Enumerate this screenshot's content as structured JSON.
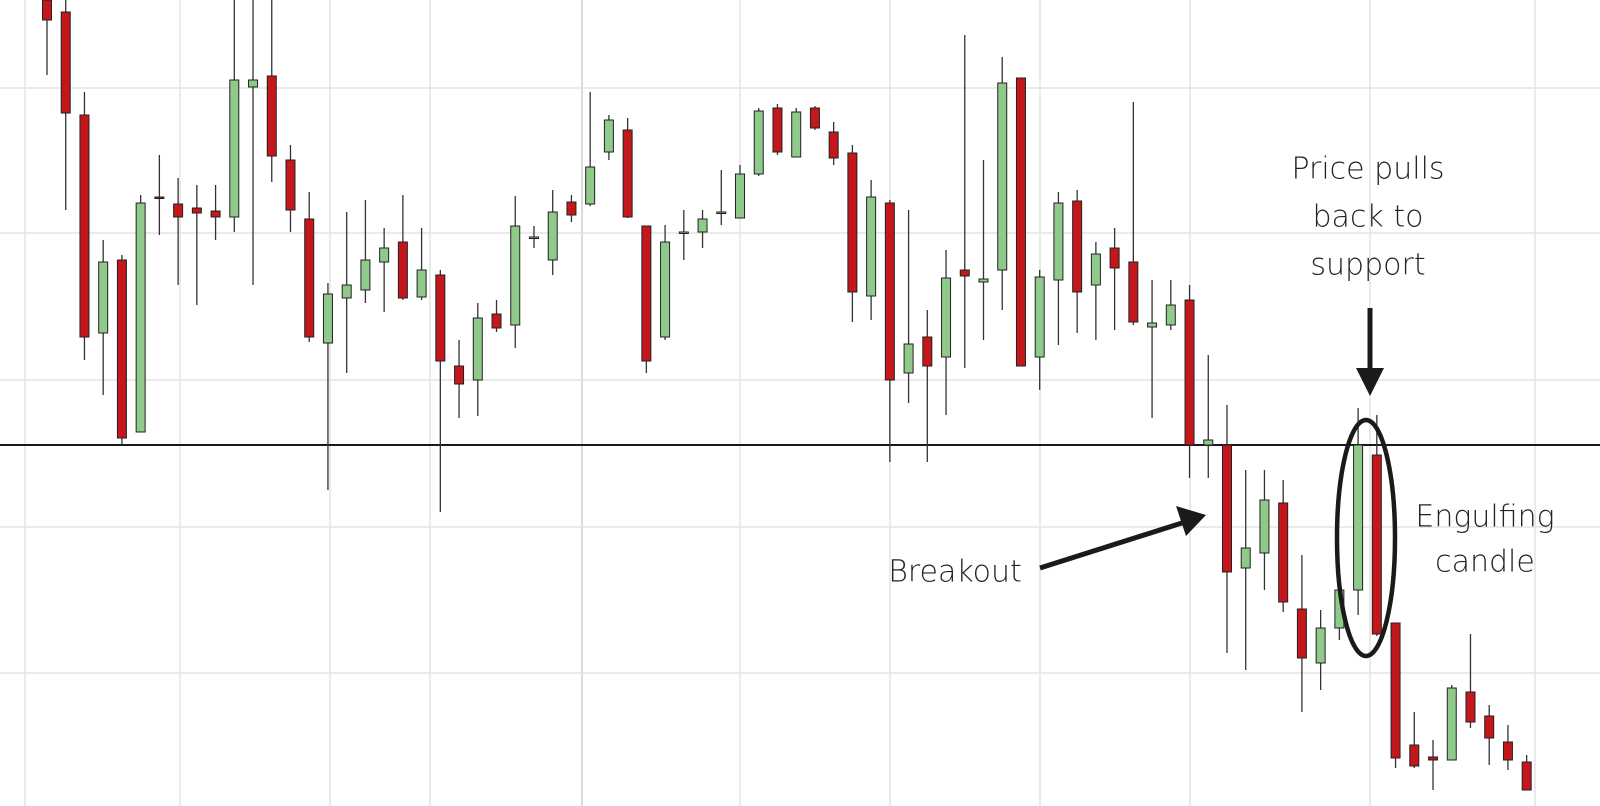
{
  "chart_data": {
    "type": "candlestick",
    "open": [
      806,
      794,
      691,
      473,
      546,
      374,
      609,
      602,
      598,
      595,
      589,
      719,
      730,
      646,
      587,
      463,
      508,
      516,
      544,
      564,
      509,
      531,
      440,
      426,
      492,
      481,
      568,
      546,
      604,
      602,
      654,
      676,
      580,
      469,
      573,
      574,
      593,
      588,
      632,
      698,
      649,
      698,
      674,
      653,
      510,
      603,
      433,
      469,
      449,
      536,
      524,
      536,
      728,
      449,
      526,
      605,
      521,
      558,
      544,
      479,
      481,
      506,
      361,
      361,
      238,
      253,
      303,
      197,
      143,
      178,
      216,
      351,
      183,
      61,
      49,
      46,
      114,
      90,
      64,
      44
    ],
    "high": [
      806,
      806,
      714,
      566,
      551,
      611,
      651,
      628,
      621,
      621,
      806,
      806,
      806,
      661,
      614,
      523,
      594,
      606,
      578,
      611,
      578,
      536,
      466,
      503,
      506,
      610,
      580,
      616,
      611,
      714,
      691,
      688,
      580,
      581,
      596,
      596,
      636,
      641,
      698,
      702,
      698,
      700,
      684,
      661,
      626,
      606,
      596,
      496,
      556,
      771,
      646,
      749,
      728,
      536,
      614,
      616,
      564,
      578,
      704,
      526,
      526,
      521,
      451,
      401,
      336,
      336,
      326,
      251,
      196,
      221,
      398,
      391,
      183,
      94,
      66,
      121,
      172,
      101,
      81,
      51
    ],
    "low": [
      731,
      596,
      446,
      411,
      361,
      374,
      571,
      521,
      501,
      566,
      574,
      521,
      624,
      574,
      464,
      316,
      433,
      503,
      494,
      506,
      506,
      294,
      388,
      390,
      474,
      458,
      558,
      531,
      584,
      600,
      646,
      588,
      433,
      466,
      546,
      558,
      581,
      588,
      630,
      651,
      649,
      676,
      641,
      484,
      486,
      344,
      403,
      344,
      391,
      438,
      466,
      496,
      440,
      416,
      461,
      473,
      466,
      476,
      481,
      388,
      476,
      328,
      328,
      153,
      136,
      216,
      194,
      94,
      116,
      166,
      191,
      170,
      38,
      38,
      16,
      46,
      78,
      41,
      36,
      16
    ],
    "close": [
      786,
      693,
      469,
      544,
      368,
      603,
      608,
      589,
      593,
      589,
      726,
      726,
      650,
      596,
      469,
      512,
      521,
      546,
      558,
      508,
      536,
      445,
      422,
      488,
      478,
      580,
      569,
      594,
      591,
      639,
      686,
      589,
      445,
      564,
      574,
      587,
      594,
      632,
      695,
      654,
      694,
      678,
      648,
      514,
      609,
      426,
      462,
      440,
      528,
      530,
      527,
      723,
      440,
      529,
      603,
      514,
      552,
      538,
      484,
      483,
      501,
      361,
      366,
      234,
      258,
      306,
      204,
      148,
      178,
      216,
      361,
      172,
      48,
      40,
      46,
      118,
      84,
      68,
      46,
      16
    ],
    "ylim": [
      0,
      806
    ],
    "up_color": "#8fca8b",
    "down_color": "#c4171c",
    "support": 361,
    "annotations": [
      {
        "text": [
          "Price pulls",
          "back to",
          "support"
        ]
      },
      {
        "text": [
          "Breakout"
        ]
      },
      {
        "text": [
          "Engulfing",
          "candle"
        ]
      }
    ]
  }
}
